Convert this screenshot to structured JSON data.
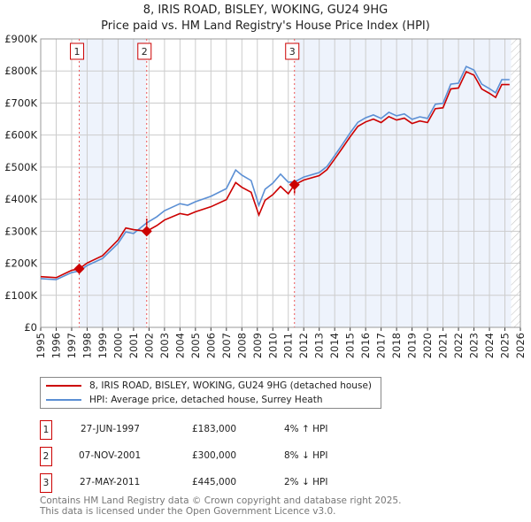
{
  "chart_data": {
    "type": "line",
    "title": "8, IRIS ROAD, BISLEY, WOKING, GU24 9HG",
    "subtitle": "Price paid vs. HM Land Registry's House Price Index (HPI)",
    "xlim": [
      1995,
      2026
    ],
    "ylim": [
      0,
      900000
    ],
    "x_ticks": [
      "1995",
      "1996",
      "1997",
      "1998",
      "1999",
      "2000",
      "2001",
      "2002",
      "2003",
      "2004",
      "2005",
      "2006",
      "2007",
      "2008",
      "2009",
      "2010",
      "2011",
      "2012",
      "2013",
      "2014",
      "2015",
      "2016",
      "2017",
      "2018",
      "2019",
      "2020",
      "2021",
      "2022",
      "2023",
      "2024",
      "2025",
      "2026"
    ],
    "y_ticks": [
      {
        "v": 0,
        "label": "£0"
      },
      {
        "v": 100000,
        "label": "£100K"
      },
      {
        "v": 200000,
        "label": "£200K"
      },
      {
        "v": 300000,
        "label": "£300K"
      },
      {
        "v": 400000,
        "label": "£400K"
      },
      {
        "v": 500000,
        "label": "£500K"
      },
      {
        "v": 600000,
        "label": "£600K"
      },
      {
        "v": 700000,
        "label": "£700K"
      },
      {
        "v": 800000,
        "label": "£800K"
      },
      {
        "v": 900000,
        "label": "£900K"
      }
    ],
    "grid": true,
    "hpi_series": {
      "name": "HPI: Average price, detached house, Surrey Heath",
      "color": "#5b8fd4",
      "x": [
        1995,
        1996,
        1997,
        1997.5,
        1998,
        1999,
        2000,
        2000.5,
        2001,
        2001.85,
        2002.5,
        2003,
        2004,
        2004.5,
        2005,
        2006,
        2007,
        2007.6,
        2008,
        2008.6,
        2009.1,
        2009.5,
        2010,
        2010.5,
        2011,
        2011.4,
        2012,
        2013,
        2013.5,
        2014,
        2014.5,
        2015,
        2015.5,
        2016,
        2016.5,
        2017,
        2017.5,
        2018,
        2018.5,
        2019,
        2019.5,
        2020,
        2020.5,
        2021,
        2021.5,
        2022,
        2022.5,
        2023,
        2023.5,
        2024,
        2024.4,
        2024.8,
        2025.3
      ],
      "y": [
        152000,
        149000,
        171000,
        176000,
        193000,
        215000,
        262000,
        298000,
        293000,
        326000,
        345000,
        364000,
        386000,
        381000,
        392000,
        409000,
        433000,
        491000,
        475000,
        458000,
        381000,
        431000,
        450000,
        478000,
        453000,
        454000,
        469000,
        483000,
        502000,
        536000,
        571000,
        607000,
        640000,
        654000,
        663000,
        652000,
        671000,
        660000,
        666000,
        649000,
        657000,
        652000,
        696000,
        699000,
        759000,
        762000,
        814000,
        803000,
        759000,
        745000,
        732000,
        773000,
        773000
      ]
    },
    "property_series": {
      "name": "8, IRIS ROAD, BISLEY, WOKING, GU24 9HG (detached house)",
      "color": "#cc0000",
      "method": "HPI indexed from each sale"
    },
    "sales": [
      {
        "n": "1",
        "x": 1997.49,
        "date": "27-JUN-1997",
        "price": 183000,
        "price_label": "£183,000",
        "hpi": "4% ↑ HPI"
      },
      {
        "n": "2",
        "x": 2001.85,
        "date": "07-NOV-2001",
        "price": 300000,
        "price_label": "£300,000",
        "hpi": "8% ↓ HPI"
      },
      {
        "n": "3",
        "x": 2011.4,
        "date": "27-MAY-2011",
        "price": 445000,
        "price_label": "£445,000",
        "hpi": "2% ↓ HPI"
      }
    ],
    "forecast_from": 2025.4,
    "legend": {
      "placement": "below",
      "items": [
        "8, IRIS ROAD, BISLEY, WOKING, GU24 9HG (detached house)",
        "HPI: Average price, detached house, Surrey Heath"
      ]
    }
  },
  "footer": {
    "line1": "Contains HM Land Registry data © Crown copyright and database right 2025.",
    "line2": "This data is licensed under the Open Government Licence v3.0."
  }
}
